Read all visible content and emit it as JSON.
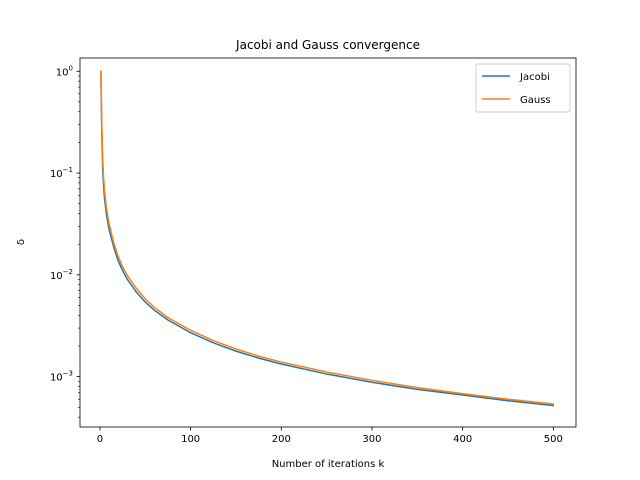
{
  "chart_data": {
    "type": "line",
    "title": "Jacobi and Gauss convergence",
    "xlabel": "Number of iterations k",
    "ylabel": "δ",
    "xlim": [
      -22,
      525
    ],
    "ylim": [
      0.00032,
      1.35
    ],
    "yscale": "log",
    "x_ticks": [
      0,
      100,
      200,
      300,
      400,
      500
    ],
    "y_ticks": [
      {
        "value": 1,
        "base": "10",
        "exp": "0"
      },
      {
        "value": 0.1,
        "base": "10",
        "exp": "−1"
      },
      {
        "value": 0.01,
        "base": "10",
        "exp": "−2"
      },
      {
        "value": 0.001,
        "base": "10",
        "exp": "−3"
      }
    ],
    "legend_position": "top-right",
    "grid": false,
    "series": [
      {
        "name": "Jacobi",
        "color": "#1f77b4",
        "x": [
          1,
          2,
          3,
          4,
          5,
          7,
          10,
          15,
          20,
          25,
          30,
          40,
          50,
          60,
          75,
          100,
          125,
          150,
          175,
          200,
          250,
          300,
          350,
          400,
          450,
          500
        ],
        "y": [
          1.0,
          0.25,
          0.11,
          0.075,
          0.057,
          0.04,
          0.028,
          0.019,
          0.0138,
          0.011,
          0.0091,
          0.0068,
          0.0054,
          0.0045,
          0.0036,
          0.0027,
          0.00215,
          0.00178,
          0.00152,
          0.00133,
          0.00106,
          0.00088,
          0.00075,
          0.00066,
          0.00058,
          0.00052
        ]
      },
      {
        "name": "Gauss",
        "color": "#ff7f0e",
        "x": [
          1,
          2,
          3,
          4,
          5,
          7,
          10,
          15,
          20,
          25,
          30,
          40,
          50,
          60,
          75,
          100,
          125,
          150,
          175,
          200,
          250,
          300,
          350,
          400,
          450,
          500
        ],
        "y": [
          1.0,
          0.32,
          0.14,
          0.09,
          0.068,
          0.046,
          0.032,
          0.021,
          0.0152,
          0.012,
          0.0099,
          0.0074,
          0.0058,
          0.0048,
          0.0038,
          0.00285,
          0.00226,
          0.00187,
          0.00159,
          0.00139,
          0.00111,
          0.00092,
          0.00078,
          0.00068,
          0.0006,
          0.00054
        ]
      }
    ]
  }
}
